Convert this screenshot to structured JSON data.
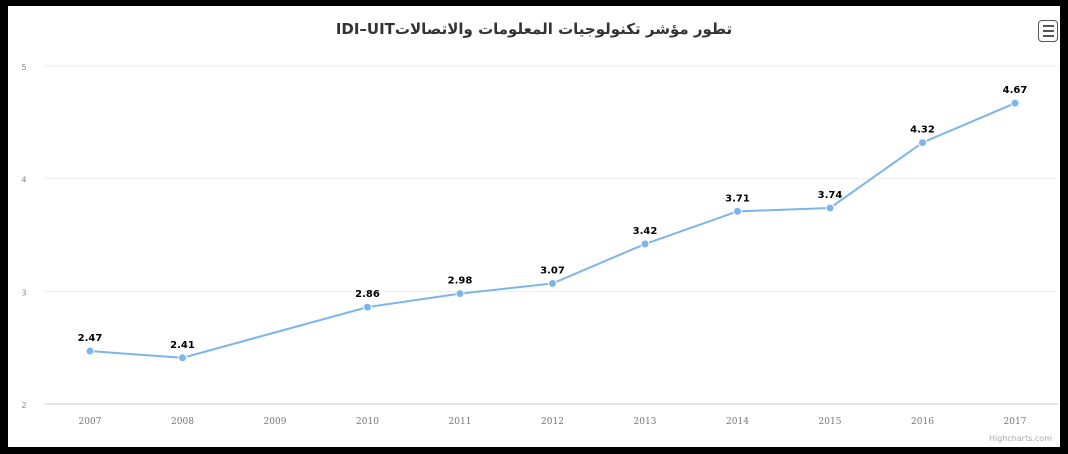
{
  "chart_data": {
    "type": "line",
    "title": "تطور مؤشر تكنولوجيات المعلومات والاتصالاتIDI–UIT",
    "xlabel": "",
    "ylabel": "",
    "categories": [
      "2007",
      "2008",
      "2009",
      "2010",
      "2011",
      "2012",
      "2013",
      "2014",
      "2015",
      "2016",
      "2017"
    ],
    "series": [
      {
        "values": [
          2.47,
          2.41,
          null,
          2.86,
          2.98,
          3.07,
          3.42,
          3.71,
          3.74,
          4.32,
          4.67
        ],
        "color": "#7cb5ec"
      }
    ],
    "ylim": [
      2,
      5
    ],
    "yticks": [
      "2",
      "3",
      "4",
      "5"
    ],
    "grid": true,
    "legend": "none",
    "data_labels": true
  },
  "menu": {
    "icon": "hamburger-menu-icon"
  },
  "credits": "Highcharts.com"
}
